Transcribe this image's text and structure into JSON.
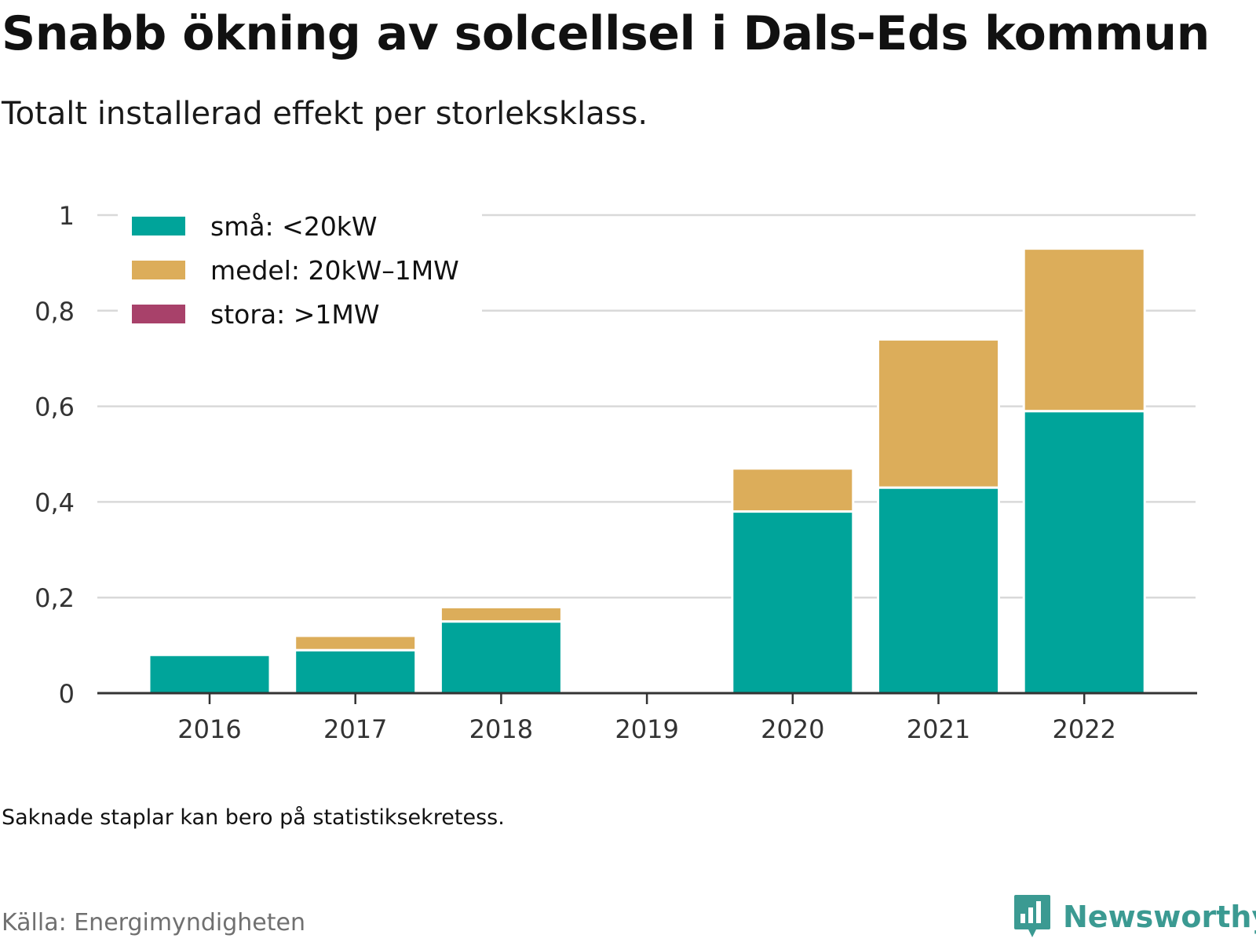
{
  "title": "Snabb ökning av solcellsel i Dals-Eds kommun",
  "subtitle": "Totalt installerad effekt per storleksklass.",
  "note": "Saknade staplar kan bero på statistiksekretess.",
  "source": "Källa: Energimyndigheten",
  "brand": {
    "name": "Newsworthy",
    "color": "#3b9a92",
    "icon": "bar-chart-speech-bubble-icon"
  },
  "chart_data": {
    "type": "bar",
    "stacked": true,
    "categories": [
      "2016",
      "2017",
      "2018",
      "2019",
      "2020",
      "2021",
      "2022"
    ],
    "series": [
      {
        "name": "små: <20kW",
        "color": "#00a49a",
        "values": [
          0.08,
          0.09,
          0.15,
          0,
          0.38,
          0.43,
          0.59
        ]
      },
      {
        "name": "medel: 20kW–1MW",
        "color": "#dcad5a",
        "values": [
          0,
          0.03,
          0.03,
          0,
          0.09,
          0.31,
          0.34
        ]
      },
      {
        "name": "stora: >1MW",
        "color": "#a8416a",
        "values": [
          0,
          0,
          0,
          0,
          0,
          0,
          0
        ]
      }
    ],
    "ylim": [
      0,
      1
    ],
    "yticks": [
      0,
      0.2,
      0.4,
      0.6,
      0.8,
      1
    ],
    "ytick_labels": [
      "0",
      "0,2",
      "0,4",
      "0,6",
      "0,8",
      "1"
    ],
    "grid": true,
    "legend_position": "top-left"
  }
}
